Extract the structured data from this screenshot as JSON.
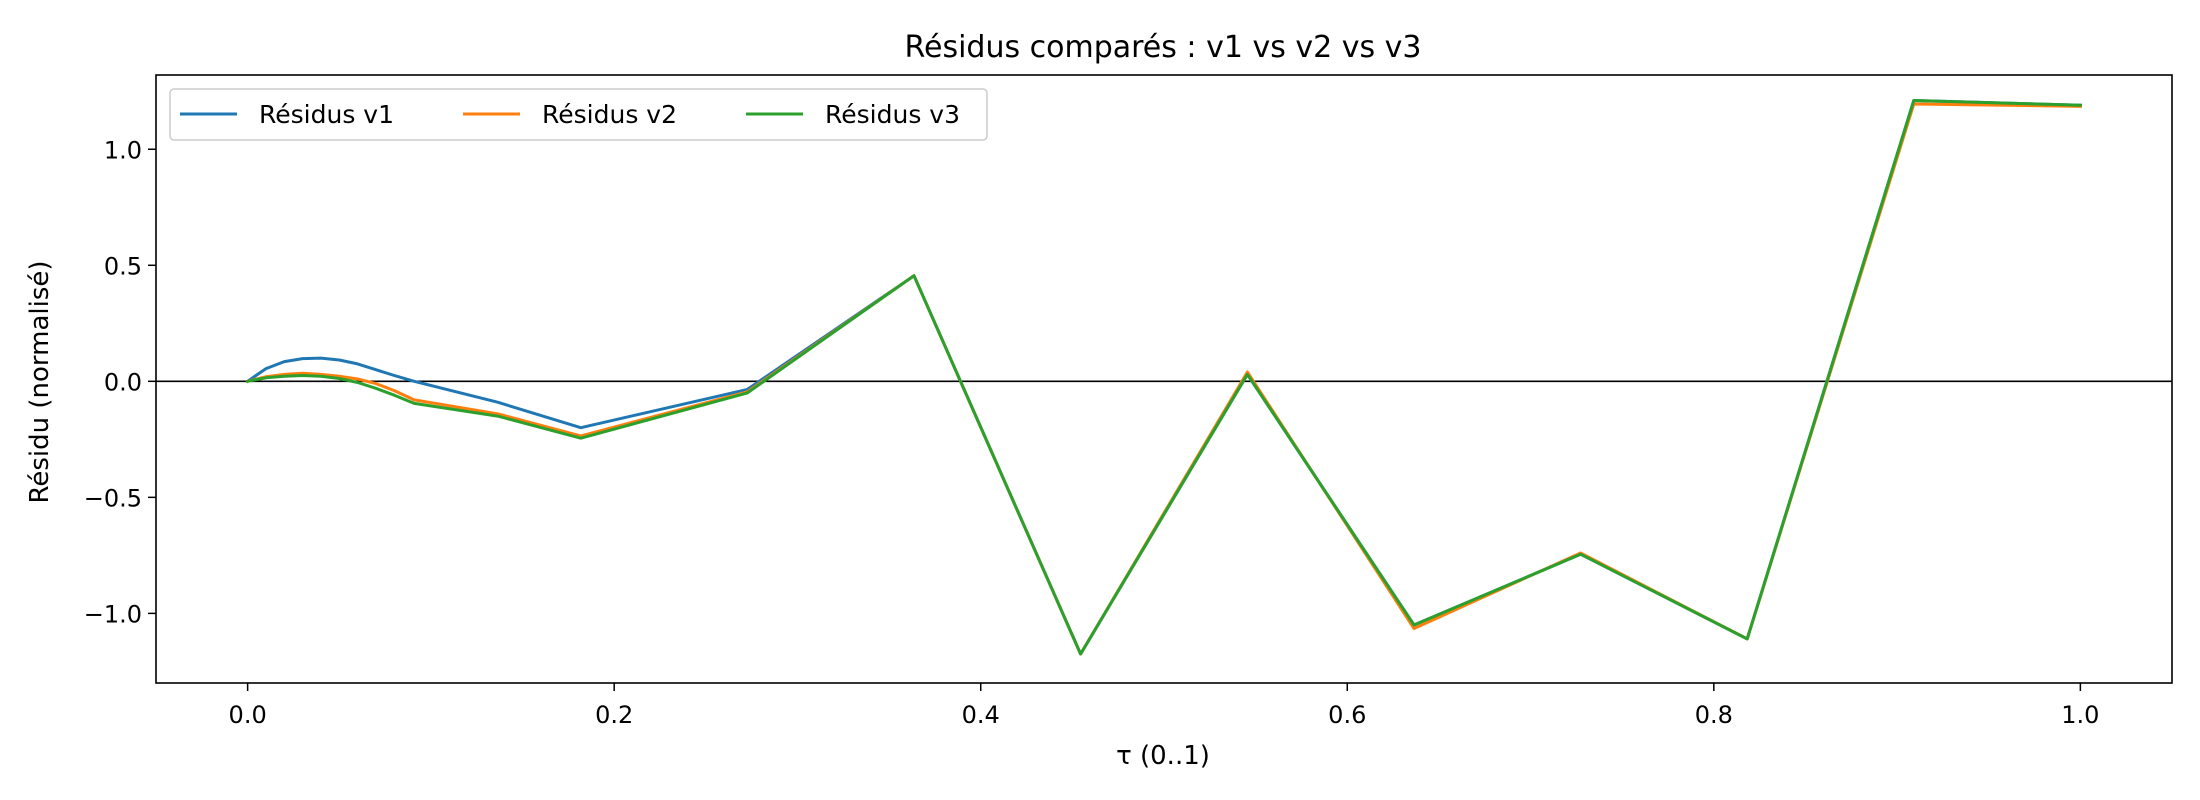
{
  "chart_data": {
    "type": "line",
    "title": "Résidus comparés : v1 vs v2 vs v3",
    "xlabel": "τ (0..1)",
    "ylabel": "Résidu (normalisé)",
    "xlim": [
      -0.05,
      1.05
    ],
    "ylim": [
      -1.3,
      1.32
    ],
    "x_ticks": [
      0.0,
      0.2,
      0.4,
      0.6,
      0.8,
      1.0
    ],
    "x_tick_labels": [
      "0.0",
      "0.2",
      "0.4",
      "0.6",
      "0.8",
      "1.0"
    ],
    "y_ticks": [
      -1.0,
      -0.5,
      0.0,
      0.5,
      1.0
    ],
    "y_tick_labels": [
      "−1.0",
      "−0.5",
      "0.0",
      "0.5",
      "1.0"
    ],
    "grid": false,
    "zero_line": true,
    "legend_position": "top-left",
    "series": [
      {
        "name": "Résidus v1",
        "color": "#1f77b4",
        "x": [
          0.0,
          0.01,
          0.02,
          0.03,
          0.04,
          0.05,
          0.06,
          0.07,
          0.08,
          0.0909,
          0.1364,
          0.1818,
          0.2727,
          0.3636,
          0.4545,
          0.5455,
          0.6364,
          0.7273,
          0.8182,
          0.9091,
          1.0
        ],
        "y": [
          0.0,
          0.055,
          0.085,
          0.098,
          0.1,
          0.092,
          0.075,
          0.05,
          0.025,
          0.0,
          -0.09,
          -0.2,
          -0.035,
          0.455,
          -1.175,
          0.03,
          -1.05,
          -0.745,
          -1.11,
          1.21,
          1.19
        ]
      },
      {
        "name": "Résidus v2",
        "color": "#ff7f0e",
        "x": [
          0.0,
          0.01,
          0.02,
          0.03,
          0.04,
          0.05,
          0.06,
          0.07,
          0.08,
          0.0909,
          0.1364,
          0.1818,
          0.2727,
          0.3636,
          0.4545,
          0.5455,
          0.6364,
          0.7273,
          0.8182,
          0.9091,
          1.0
        ],
        "y": [
          0.0,
          0.02,
          0.03,
          0.035,
          0.03,
          0.022,
          0.01,
          -0.01,
          -0.04,
          -0.08,
          -0.14,
          -0.235,
          -0.045,
          0.455,
          -1.175,
          0.04,
          -1.065,
          -0.74,
          -1.11,
          1.195,
          1.185
        ]
      },
      {
        "name": "Résidus v3",
        "color": "#2ca02c",
        "x": [
          0.0,
          0.01,
          0.02,
          0.03,
          0.04,
          0.05,
          0.06,
          0.07,
          0.08,
          0.0909,
          0.1364,
          0.1818,
          0.2727,
          0.3636,
          0.4545,
          0.5455,
          0.6364,
          0.7273,
          0.8182,
          0.9091,
          1.0
        ],
        "y": [
          0.0,
          0.015,
          0.022,
          0.025,
          0.022,
          0.012,
          -0.005,
          -0.03,
          -0.06,
          -0.095,
          -0.15,
          -0.245,
          -0.05,
          0.455,
          -1.175,
          0.03,
          -1.05,
          -0.745,
          -1.11,
          1.21,
          1.19
        ]
      }
    ]
  }
}
